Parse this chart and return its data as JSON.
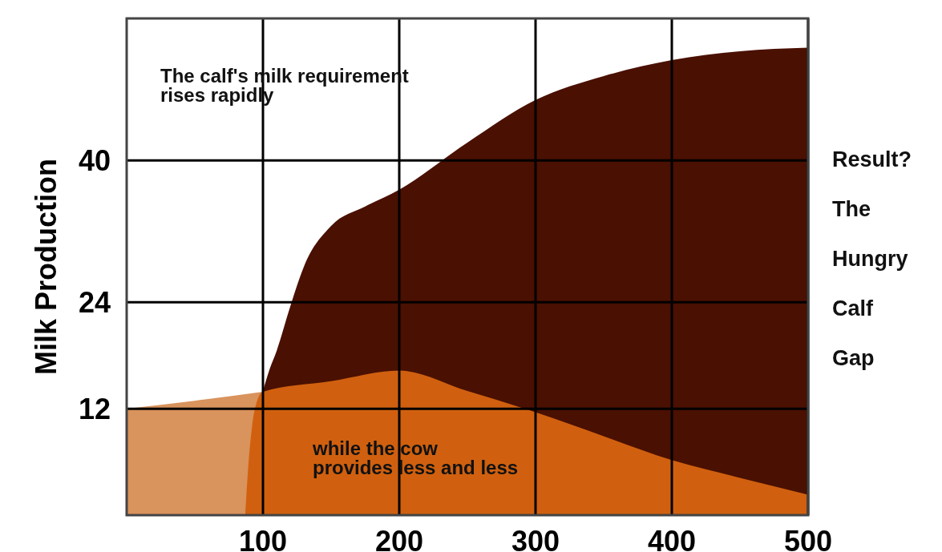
{
  "chart_data": {
    "type": "area",
    "ylabel": "Milk Production",
    "xlim": [
      0,
      500
    ],
    "xticks": [
      100,
      200,
      300,
      400,
      500
    ],
    "ylim": [
      0,
      56
    ],
    "yticks": [
      12,
      24,
      40
    ],
    "series": [
      {
        "color": "#d9935c",
        "x": [
          0,
          50,
          100
        ],
        "values": [
          12,
          12.9,
          13.9
        ]
      },
      {
        "color": "#4a1002",
        "x": [
          100,
          105,
          110,
          120,
          130,
          150,
          175,
          200,
          250,
          300,
          350,
          400,
          450,
          500
        ],
        "values": [
          14,
          16.5,
          18.5,
          23.5,
          28,
          32.6,
          34.8,
          36.7,
          42,
          46.8,
          49.5,
          51.3,
          52.3,
          52.7
        ]
      },
      {
        "color": "#d0600f",
        "x": [
          87,
          89,
          92,
          96,
          100,
          150,
          200,
          250,
          300,
          350,
          400,
          450,
          500
        ],
        "values": [
          0,
          5,
          10,
          13,
          13.9,
          15.1,
          16.3,
          14,
          11.6,
          8.9,
          6.2,
          4.2,
          2.3
        ]
      }
    ],
    "grid": true,
    "annotations": [
      "The calf's milk requirement\nrises rapidly",
      "while the cow\nprovides less and less",
      "Result?\nThe\nHungry\nCalf\nGap"
    ]
  }
}
